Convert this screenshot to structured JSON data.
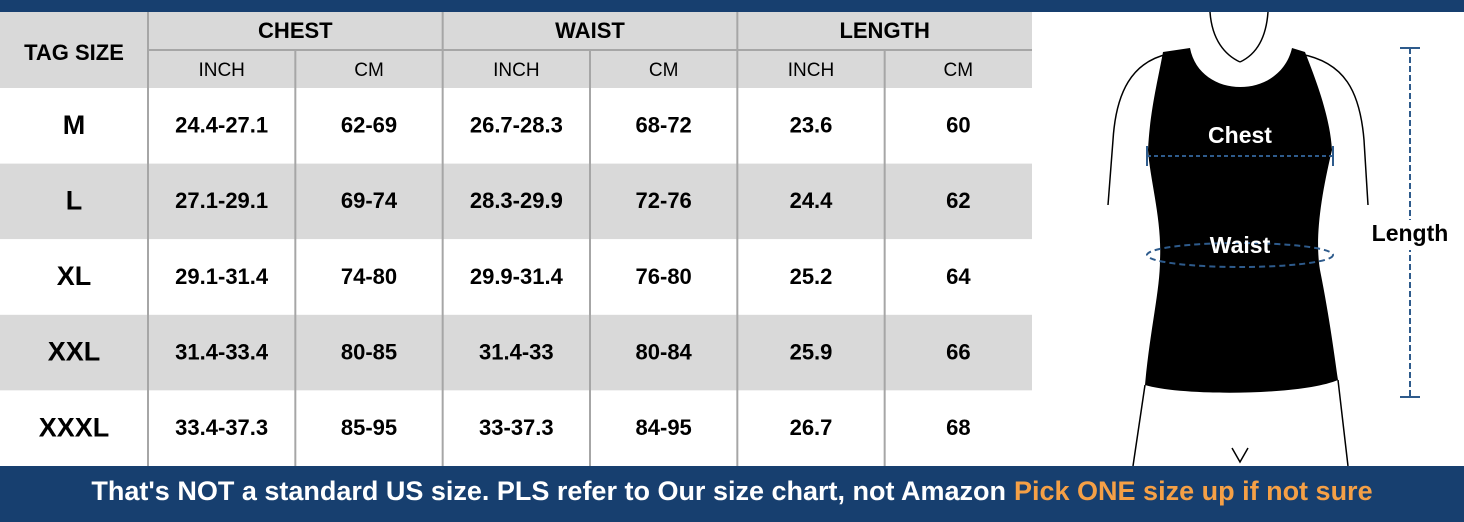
{
  "header": {
    "title": "TAG SIZE",
    "groups": [
      "CHEST",
      "WAIST",
      "LENGTH"
    ],
    "units": [
      "INCH",
      "CM",
      "INCH",
      "CM",
      "INCH",
      "CM"
    ]
  },
  "table": {
    "rows": [
      [
        "M",
        "24.4-27.1",
        "62-69",
        "26.7-28.3",
        "68-72",
        "23.6",
        "60"
      ],
      [
        "L",
        "27.1-29.1",
        "69-74",
        "28.3-29.9",
        "72-76",
        "24.4",
        "62"
      ],
      [
        "XL",
        "29.1-31.4",
        "74-80",
        "29.9-31.4",
        "76-80",
        "25.2",
        "64"
      ],
      [
        "XXL",
        "31.4-33.4",
        "80-85",
        "31.4-33",
        "80-84",
        "25.9",
        "66"
      ],
      [
        "XXXL",
        "33.4-37.3",
        "85-95",
        "33-37.3",
        "84-95",
        "26.7",
        "68"
      ]
    ]
  },
  "figure": {
    "chest": "Chest",
    "waist": "Waist",
    "length": "Length"
  },
  "banner": {
    "text": "That's NOT a standard US size. PLS refer to Our size chart, not Amazon",
    "highlight": "Pick ONE size up if not sure"
  }
}
